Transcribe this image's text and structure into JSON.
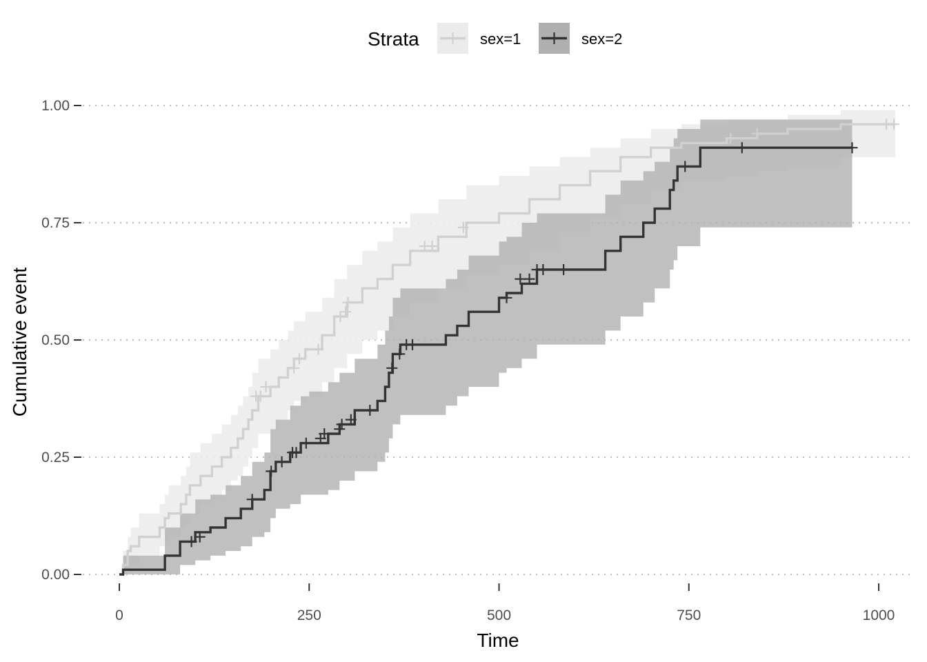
{
  "chart_data": {
    "type": "line",
    "step": true,
    "xlabel": "Time",
    "ylabel": "Cumulative event",
    "xlim": [
      -15,
      1030
    ],
    "ylim": [
      0,
      1
    ],
    "x_ticks": [
      0,
      250,
      500,
      750,
      1000
    ],
    "y_ticks": [
      0,
      0.25,
      0.5,
      0.75,
      1
    ],
    "x_tick_labels": [
      "0",
      "250",
      "500",
      "750",
      "1000"
    ],
    "y_tick_labels": [
      "0.00",
      "0.25",
      "0.50",
      "0.75",
      "1.00"
    ],
    "grid": {
      "horizontal_major": true,
      "style": "dotted"
    },
    "legend": {
      "title": "Strata",
      "position": "top",
      "entries": [
        "sex=1",
        "sex=2"
      ]
    },
    "series": [
      {
        "name": "sex=1",
        "color": "#d0d0d0",
        "band_color": "#ebebeb",
        "x": [
          0,
          5,
          11,
          15,
          26,
          53,
          60,
          65,
          81,
          88,
          93,
          107,
          122,
          135,
          147,
          156,
          163,
          170,
          175,
          183,
          199,
          210,
          222,
          230,
          245,
          267,
          283,
          300,
          320,
          340,
          360,
          383,
          420,
          457,
          500,
          540,
          580,
          620,
          660,
          700,
          740,
          800,
          840,
          880,
          950,
          1022
        ],
        "y": [
          0,
          0.02,
          0.05,
          0.06,
          0.08,
          0.1,
          0.12,
          0.13,
          0.15,
          0.17,
          0.19,
          0.21,
          0.23,
          0.25,
          0.27,
          0.29,
          0.31,
          0.33,
          0.35,
          0.38,
          0.4,
          0.42,
          0.44,
          0.46,
          0.48,
          0.51,
          0.55,
          0.58,
          0.61,
          0.63,
          0.66,
          0.69,
          0.72,
          0.75,
          0.77,
          0.8,
          0.83,
          0.86,
          0.89,
          0.91,
          0.92,
          0.93,
          0.94,
          0.95,
          0.96,
          0.96
        ],
        "lower": [
          0,
          0,
          0.01,
          0.02,
          0.04,
          0.06,
          0.07,
          0.08,
          0.1,
          0.11,
          0.13,
          0.15,
          0.16,
          0.18,
          0.2,
          0.21,
          0.23,
          0.25,
          0.27,
          0.3,
          0.31,
          0.33,
          0.35,
          0.37,
          0.38,
          0.41,
          0.44,
          0.47,
          0.5,
          0.52,
          0.55,
          0.58,
          0.61,
          0.64,
          0.66,
          0.69,
          0.73,
          0.76,
          0.79,
          0.82,
          0.84,
          0.85,
          0.86,
          0.87,
          0.89,
          0.89
        ],
        "upper": [
          0,
          0.05,
          0.08,
          0.1,
          0.13,
          0.15,
          0.17,
          0.19,
          0.21,
          0.23,
          0.26,
          0.28,
          0.3,
          0.32,
          0.34,
          0.36,
          0.38,
          0.4,
          0.43,
          0.46,
          0.48,
          0.5,
          0.52,
          0.54,
          0.56,
          0.59,
          0.63,
          0.66,
          0.69,
          0.71,
          0.74,
          0.77,
          0.8,
          0.83,
          0.85,
          0.87,
          0.89,
          0.91,
          0.93,
          0.95,
          0.96,
          0.97,
          0.97,
          0.98,
          0.99,
          0.99
        ],
        "censor_x": [
          180,
          186,
          193,
          230,
          237,
          262,
          291,
          298,
          301,
          402,
          412,
          453,
          805,
          840,
          1010,
          1020
        ],
        "censor_y": [
          0.38,
          0.38,
          0.4,
          0.44,
          0.46,
          0.48,
          0.55,
          0.56,
          0.58,
          0.7,
          0.7,
          0.74,
          0.93,
          0.94,
          0.96,
          0.96
        ]
      },
      {
        "name": "sex=2",
        "color": "#333333",
        "band_color": "#b0b0b0",
        "x": [
          0,
          5,
          60,
          80,
          100,
          120,
          140,
          160,
          175,
          191,
          199,
          206,
          225,
          239,
          250,
          275,
          290,
          310,
          340,
          350,
          355,
          360,
          370,
          430,
          445,
          460,
          500,
          510,
          530,
          550,
          640,
          660,
          690,
          705,
          725,
          730,
          735,
          765,
          965
        ],
        "y": [
          0,
          0.01,
          0.04,
          0.07,
          0.09,
          0.1,
          0.12,
          0.14,
          0.16,
          0.18,
          0.22,
          0.24,
          0.26,
          0.28,
          0.28,
          0.3,
          0.32,
          0.35,
          0.37,
          0.4,
          0.43,
          0.47,
          0.49,
          0.51,
          0.53,
          0.56,
          0.59,
          0.6,
          0.62,
          0.65,
          0.69,
          0.72,
          0.75,
          0.78,
          0.82,
          0.84,
          0.87,
          0.91,
          0.91
        ],
        "lower": [
          0,
          0,
          0,
          0.02,
          0.03,
          0.04,
          0.05,
          0.06,
          0.08,
          0.09,
          0.12,
          0.14,
          0.15,
          0.17,
          0.17,
          0.18,
          0.2,
          0.22,
          0.24,
          0.26,
          0.29,
          0.32,
          0.34,
          0.36,
          0.38,
          0.4,
          0.43,
          0.44,
          0.46,
          0.49,
          0.52,
          0.55,
          0.58,
          0.61,
          0.65,
          0.67,
          0.7,
          0.74,
          0.74
        ],
        "upper": [
          0,
          0.04,
          0.1,
          0.13,
          0.16,
          0.17,
          0.19,
          0.21,
          0.24,
          0.26,
          0.31,
          0.33,
          0.36,
          0.38,
          0.39,
          0.41,
          0.43,
          0.46,
          0.49,
          0.52,
          0.55,
          0.59,
          0.61,
          0.63,
          0.65,
          0.68,
          0.71,
          0.72,
          0.75,
          0.77,
          0.81,
          0.84,
          0.86,
          0.88,
          0.91,
          0.93,
          0.95,
          0.97,
          0.97
        ],
        "censor_x": [
          95,
          106,
          175,
          200,
          214,
          228,
          233,
          246,
          265,
          270,
          290,
          293,
          305,
          330,
          359,
          369,
          378,
          386,
          510,
          528,
          540,
          550,
          558,
          585,
          745,
          820,
          965
        ],
        "censor_y": [
          0.07,
          0.08,
          0.16,
          0.22,
          0.24,
          0.26,
          0.26,
          0.28,
          0.29,
          0.3,
          0.31,
          0.32,
          0.33,
          0.35,
          0.44,
          0.47,
          0.49,
          0.49,
          0.59,
          0.63,
          0.63,
          0.65,
          0.65,
          0.65,
          0.87,
          0.91,
          0.91
        ]
      }
    ]
  }
}
